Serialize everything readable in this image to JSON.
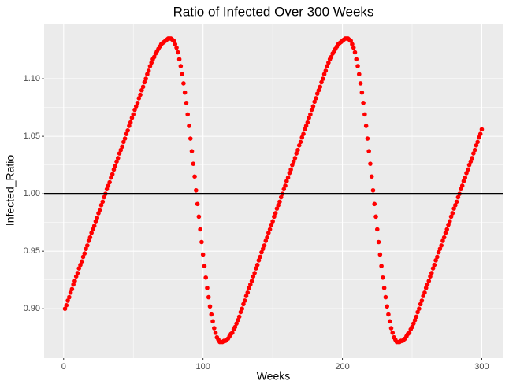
{
  "chart_data": {
    "type": "scatter",
    "title": "Ratio of Infected Over 300 Weeks",
    "x_label": "Weeks",
    "y_label": "Infected_Ratio",
    "color": "#ff0000",
    "grid": true,
    "minor_grid": true,
    "reference_line": {
      "value": 1,
      "color": "#000000"
    },
    "xlim": [
      -14,
      315
    ],
    "xticks": [
      0,
      100,
      200,
      300
    ],
    "ylim": [
      0.857,
      1.148
    ],
    "yticks": [
      {
        "value": 0.9,
        "label": "0.90"
      },
      {
        "value": 0.95,
        "label": "0.95"
      },
      {
        "value": 1,
        "label": "1.00"
      },
      {
        "value": 1.05,
        "label": "1.05"
      },
      {
        "value": 1.1,
        "label": "1.10"
      }
    ],
    "x": [
      1,
      2,
      3,
      4,
      5,
      6,
      7,
      8,
      9,
      10,
      11,
      12,
      13,
      14,
      15,
      16,
      17,
      18,
      19,
      20,
      21,
      22,
      23,
      24,
      25,
      26,
      27,
      28,
      29,
      30,
      31,
      32,
      33,
      34,
      35,
      36,
      37,
      38,
      39,
      40,
      41,
      42,
      43,
      44,
      45,
      46,
      47,
      48,
      49,
      50,
      51,
      52,
      53,
      54,
      55,
      56,
      57,
      58,
      59,
      60,
      61,
      62,
      63,
      64,
      65,
      66,
      67,
      68,
      69,
      70,
      71,
      72,
      73,
      74,
      75,
      76,
      77,
      78,
      79,
      80,
      81,
      82,
      83,
      84,
      85,
      86,
      87,
      88,
      89,
      90,
      91,
      92,
      93,
      94,
      95,
      96,
      97,
      98,
      99,
      100,
      101,
      102,
      103,
      104,
      105,
      106,
      107,
      108,
      109,
      110,
      111,
      112,
      113,
      114,
      115,
      116,
      117,
      118,
      119,
      120,
      121,
      122,
      123,
      124,
      125,
      126,
      127,
      128,
      129,
      130,
      131,
      132,
      133,
      134,
      135,
      136,
      137,
      138,
      139,
      140,
      141,
      142,
      143,
      144,
      145,
      146,
      147,
      148,
      149,
      150,
      151,
      152,
      153,
      154,
      155,
      156,
      157,
      158,
      159,
      160,
      161,
      162,
      163,
      164,
      165,
      166,
      167,
      168,
      169,
      170,
      171,
      172,
      173,
      174,
      175,
      176,
      177,
      178,
      179,
      180,
      181,
      182,
      183,
      184,
      185,
      186,
      187,
      188,
      189,
      190,
      191,
      192,
      193,
      194,
      195,
      196,
      197,
      198,
      199,
      200,
      201,
      202,
      203,
      204,
      205,
      206,
      207,
      208,
      209,
      210,
      211,
      212,
      213,
      214,
      215,
      216,
      217,
      218,
      219,
      220,
      221,
      222,
      223,
      224,
      225,
      226,
      227,
      228,
      229,
      230,
      231,
      232,
      233,
      234,
      235,
      236,
      237,
      238,
      239,
      240,
      241,
      242,
      243,
      244,
      245,
      246,
      247,
      248,
      249,
      250,
      251,
      252,
      253,
      254,
      255,
      256,
      257,
      258,
      259,
      260,
      261,
      262,
      263,
      264,
      265,
      266,
      267,
      268,
      269,
      270,
      271,
      272,
      273,
      274,
      275,
      276,
      277,
      278,
      279,
      280,
      281,
      282,
      283,
      284,
      285,
      286,
      287,
      288,
      289,
      290,
      291,
      292,
      293,
      294,
      295,
      296,
      297,
      298,
      299,
      300
    ],
    "values": [
      0.9,
      0.903,
      0.907,
      0.91,
      0.914,
      0.917,
      0.921,
      0.924,
      0.928,
      0.931,
      0.935,
      0.938,
      0.941,
      0.945,
      0.948,
      0.952,
      0.955,
      0.959,
      0.962,
      0.966,
      0.969,
      0.972,
      0.976,
      0.979,
      0.983,
      0.986,
      0.99,
      0.993,
      0.997,
      1.0,
      1.004,
      1.007,
      1.01,
      1.014,
      1.017,
      1.021,
      1.024,
      1.028,
      1.031,
      1.035,
      1.038,
      1.041,
      1.045,
      1.048,
      1.052,
      1.055,
      1.059,
      1.062,
      1.066,
      1.069,
      1.073,
      1.076,
      1.079,
      1.083,
      1.086,
      1.09,
      1.093,
      1.097,
      1.1,
      1.104,
      1.107,
      1.111,
      1.114,
      1.117,
      1.119,
      1.122,
      1.124,
      1.126,
      1.128,
      1.13,
      1.131,
      1.132,
      1.133,
      1.134,
      1.135,
      1.135,
      1.135,
      1.134,
      1.133,
      1.13,
      1.127,
      1.123,
      1.117,
      1.111,
      1.104,
      1.096,
      1.088,
      1.079,
      1.069,
      1.059,
      1.048,
      1.037,
      1.026,
      1.015,
      1.003,
      0.991,
      0.98,
      0.969,
      0.958,
      0.947,
      0.937,
      0.927,
      0.918,
      0.91,
      0.902,
      0.895,
      0.889,
      0.883,
      0.879,
      0.875,
      0.873,
      0.871,
      0.871,
      0.871,
      0.872,
      0.872,
      0.873,
      0.874,
      0.876,
      0.878,
      0.879,
      0.882,
      0.884,
      0.887,
      0.89,
      0.893,
      0.897,
      0.9,
      0.904,
      0.907,
      0.911,
      0.914,
      0.918,
      0.921,
      0.924,
      0.928,
      0.931,
      0.935,
      0.938,
      0.942,
      0.945,
      0.949,
      0.952,
      0.955,
      0.959,
      0.962,
      0.966,
      0.969,
      0.973,
      0.976,
      0.98,
      0.983,
      0.987,
      0.99,
      0.993,
      0.997,
      1.0,
      1.004,
      1.007,
      1.011,
      1.014,
      1.018,
      1.021,
      1.025,
      1.028,
      1.031,
      1.035,
      1.038,
      1.042,
      1.045,
      1.049,
      1.052,
      1.056,
      1.059,
      1.062,
      1.066,
      1.069,
      1.073,
      1.076,
      1.08,
      1.083,
      1.087,
      1.09,
      1.093,
      1.097,
      1.1,
      1.104,
      1.107,
      1.111,
      1.114,
      1.117,
      1.119,
      1.122,
      1.124,
      1.126,
      1.128,
      1.13,
      1.131,
      1.132,
      1.133,
      1.134,
      1.135,
      1.135,
      1.135,
      1.134,
      1.133,
      1.13,
      1.127,
      1.123,
      1.117,
      1.111,
      1.104,
      1.096,
      1.088,
      1.079,
      1.069,
      1.059,
      1.048,
      1.037,
      1.026,
      1.015,
      1.003,
      0.991,
      0.98,
      0.969,
      0.958,
      0.947,
      0.937,
      0.927,
      0.918,
      0.91,
      0.902,
      0.895,
      0.889,
      0.883,
      0.879,
      0.875,
      0.873,
      0.871,
      0.871,
      0.871,
      0.872,
      0.872,
      0.873,
      0.874,
      0.876,
      0.878,
      0.879,
      0.882,
      0.884,
      0.887,
      0.89,
      0.893,
      0.897,
      0.9,
      0.904,
      0.907,
      0.911,
      0.914,
      0.918,
      0.921,
      0.924,
      0.928,
      0.931,
      0.935,
      0.938,
      0.942,
      0.945,
      0.949,
      0.952,
      0.955,
      0.959,
      0.962,
      0.966,
      0.969,
      0.973,
      0.976,
      0.98,
      0.983,
      0.987,
      0.99,
      0.993,
      0.997,
      1.0,
      1.004,
      1.007,
      1.011,
      1.014,
      1.018,
      1.021,
      1.025,
      1.028,
      1.031,
      1.035,
      1.038,
      1.042,
      1.045,
      1.049,
      1.052,
      1.056
    ]
  }
}
